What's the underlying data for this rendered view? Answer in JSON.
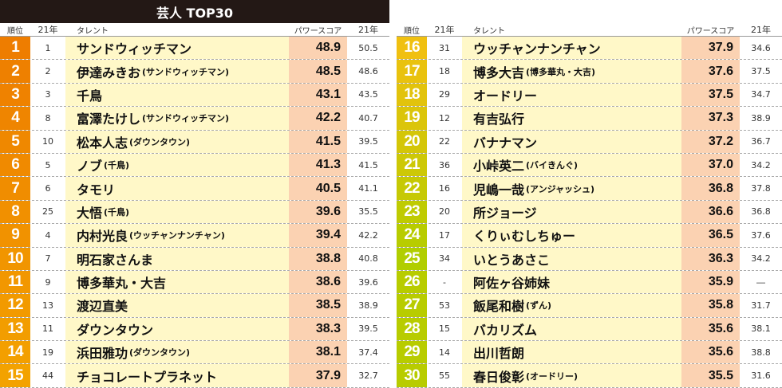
{
  "title": "芸人 TOP30",
  "headers": {
    "rank": "順位",
    "prev_rank": "21年",
    "talent": "タレント",
    "score": "パワースコア",
    "prev_score": "21年"
  },
  "colors": {
    "rank_top": "#ee7d00",
    "rank_mid": "#f0c010",
    "rank_low": "#b8cc00",
    "name_bg": "#fff8c8",
    "score_bg": "#fbd2b2",
    "title_bg": "#231815"
  },
  "chart_data": {
    "type": "table",
    "title": "芸人 TOP30",
    "columns": [
      "順位",
      "21年",
      "タレント",
      "パワースコア",
      "21年"
    ],
    "rows": [
      {
        "rank": "1",
        "prev": "1",
        "name": "サンドウィッチマン",
        "sub": "",
        "score": "48.9",
        "last": "50.5"
      },
      {
        "rank": "2",
        "prev": "2",
        "name": "伊達みきお",
        "sub": "(サンドウィッチマン)",
        "score": "48.5",
        "last": "48.6"
      },
      {
        "rank": "3",
        "prev": "3",
        "name": "千鳥",
        "sub": "",
        "score": "43.1",
        "last": "43.5"
      },
      {
        "rank": "4",
        "prev": "8",
        "name": "富澤たけし",
        "sub": "(サンドウィッチマン)",
        "score": "42.2",
        "last": "40.7"
      },
      {
        "rank": "5",
        "prev": "10",
        "name": "松本人志",
        "sub": "(ダウンタウン)",
        "score": "41.5",
        "last": "39.5"
      },
      {
        "rank": "6",
        "prev": "5",
        "name": "ノブ",
        "sub": "(千鳥)",
        "score": "41.3",
        "last": "41.5"
      },
      {
        "rank": "7",
        "prev": "6",
        "name": "タモリ",
        "sub": "",
        "score": "40.5",
        "last": "41.1"
      },
      {
        "rank": "8",
        "prev": "25",
        "name": "大悟",
        "sub": "(千鳥)",
        "score": "39.6",
        "last": "35.5"
      },
      {
        "rank": "9",
        "prev": "4",
        "name": "内村光良",
        "sub": "(ウッチャンナンチャン)",
        "score": "39.4",
        "last": "42.2"
      },
      {
        "rank": "10",
        "prev": "7",
        "name": "明石家さんま",
        "sub": "",
        "score": "38.8",
        "last": "40.8"
      },
      {
        "rank": "11",
        "prev": "9",
        "name": "博多華丸・大吉",
        "sub": "",
        "score": "38.6",
        "last": "39.6"
      },
      {
        "rank": "12",
        "prev": "13",
        "name": "渡辺直美",
        "sub": "",
        "score": "38.5",
        "last": "38.9"
      },
      {
        "rank": "13",
        "prev": "11",
        "name": "ダウンタウン",
        "sub": "",
        "score": "38.3",
        "last": "39.5"
      },
      {
        "rank": "14",
        "prev": "19",
        "name": "浜田雅功",
        "sub": "(ダウンタウン)",
        "score": "38.1",
        "last": "37.4"
      },
      {
        "rank": "15",
        "prev": "44",
        "name": "チョコレートプラネット",
        "sub": "",
        "score": "37.9",
        "last": "32.7"
      },
      {
        "rank": "16",
        "prev": "31",
        "name": "ウッチャンナンチャン",
        "sub": "",
        "score": "37.9",
        "last": "34.6"
      },
      {
        "rank": "17",
        "prev": "18",
        "name": "博多大吉",
        "sub": "(博多華丸・大吉)",
        "score": "37.6",
        "last": "37.5"
      },
      {
        "rank": "18",
        "prev": "29",
        "name": "オードリー",
        "sub": "",
        "score": "37.5",
        "last": "34.7"
      },
      {
        "rank": "19",
        "prev": "12",
        "name": "有吉弘行",
        "sub": "",
        "score": "37.3",
        "last": "38.9"
      },
      {
        "rank": "20",
        "prev": "22",
        "name": "バナナマン",
        "sub": "",
        "score": "37.2",
        "last": "36.7"
      },
      {
        "rank": "21",
        "prev": "36",
        "name": "小峠英二",
        "sub": "(バイきんぐ)",
        "score": "37.0",
        "last": "34.2"
      },
      {
        "rank": "22",
        "prev": "16",
        "name": "児嶋一哉",
        "sub": "(アンジャッシュ)",
        "score": "36.8",
        "last": "37.8"
      },
      {
        "rank": "23",
        "prev": "20",
        "name": "所ジョージ",
        "sub": "",
        "score": "36.6",
        "last": "36.8"
      },
      {
        "rank": "24",
        "prev": "17",
        "name": "くりぃむしちゅー",
        "sub": "",
        "score": "36.5",
        "last": "37.6"
      },
      {
        "rank": "25",
        "prev": "34",
        "name": "いとうあさこ",
        "sub": "",
        "score": "36.3",
        "last": "34.2"
      },
      {
        "rank": "26",
        "prev": "-",
        "name": "阿佐ヶ谷姉妹",
        "sub": "",
        "score": "35.9",
        "last": "―"
      },
      {
        "rank": "27",
        "prev": "53",
        "name": "飯尾和樹",
        "sub": "(ずん)",
        "score": "35.8",
        "last": "31.7"
      },
      {
        "rank": "28",
        "prev": "15",
        "name": "バカリズム",
        "sub": "",
        "score": "35.6",
        "last": "38.1"
      },
      {
        "rank": "29",
        "prev": "14",
        "name": "出川哲朗",
        "sub": "",
        "score": "35.6",
        "last": "38.8"
      },
      {
        "rank": "30",
        "prev": "55",
        "name": "春日俊彰",
        "sub": "(オードリー)",
        "score": "35.5",
        "last": "31.6"
      }
    ]
  }
}
